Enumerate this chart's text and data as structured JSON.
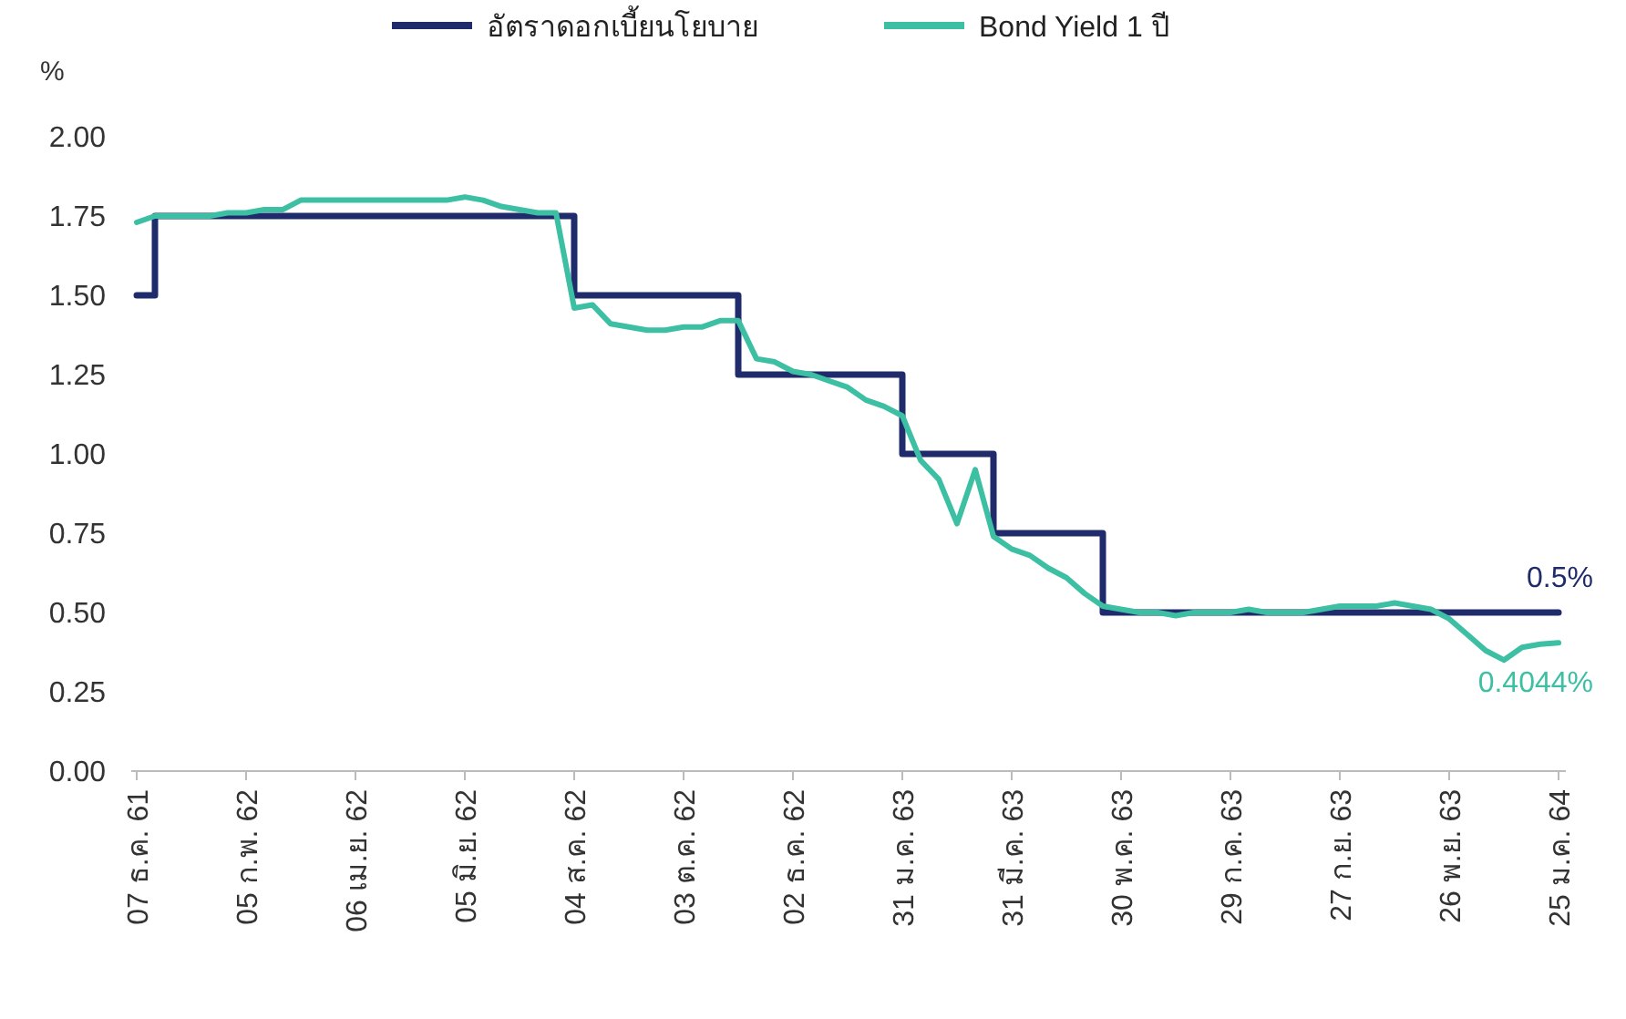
{
  "chart_data": {
    "type": "line",
    "ylabel": "%",
    "categories": [
      "07 ธ.ค. 61",
      null,
      null,
      null,
      null,
      null,
      "05 ก.พ. 62",
      null,
      null,
      null,
      null,
      null,
      "06 เม.ย. 62",
      null,
      null,
      null,
      null,
      null,
      "05 มิ.ย. 62",
      null,
      null,
      null,
      null,
      null,
      "04 ส.ค. 62",
      null,
      null,
      null,
      null,
      null,
      "03 ต.ค. 62",
      null,
      null,
      null,
      null,
      null,
      "02 ธ.ค. 62",
      null,
      null,
      null,
      null,
      null,
      "31 ม.ค. 63",
      null,
      null,
      null,
      null,
      null,
      "31 มี.ค. 63",
      null,
      null,
      null,
      null,
      null,
      "30 พ.ค. 63",
      null,
      null,
      null,
      null,
      null,
      "29 ก.ค. 63",
      null,
      null,
      null,
      null,
      null,
      "27 ก.ย. 63",
      null,
      null,
      null,
      null,
      null,
      "26 พ.ย. 63",
      null,
      null,
      null,
      null,
      null,
      "25 ม.ค. 64"
    ],
    "series": [
      {
        "name": "อัตราดอกเบี้ยนโยบาย",
        "type": "step",
        "color": "#1f2b6b",
        "values": [
          1.5,
          1.75,
          1.75,
          1.75,
          1.75,
          1.75,
          1.75,
          1.75,
          1.75,
          1.75,
          1.75,
          1.75,
          1.75,
          1.75,
          1.75,
          1.75,
          1.75,
          1.75,
          1.75,
          1.75,
          1.75,
          1.75,
          1.75,
          1.75,
          1.5,
          1.5,
          1.5,
          1.5,
          1.5,
          1.5,
          1.5,
          1.5,
          1.5,
          1.25,
          1.25,
          1.25,
          1.25,
          1.25,
          1.25,
          1.25,
          1.25,
          1.25,
          1.0,
          1.0,
          1.0,
          1.0,
          1.0,
          0.75,
          0.75,
          0.75,
          0.75,
          0.75,
          0.75,
          0.5,
          0.5,
          0.5,
          0.5,
          0.5,
          0.5,
          0.5,
          0.5,
          0.5,
          0.5,
          0.5,
          0.5,
          0.5,
          0.5,
          0.5,
          0.5,
          0.5,
          0.5,
          0.5,
          0.5,
          0.5,
          0.5,
          0.5,
          0.5,
          0.5,
          0.5
        ]
      },
      {
        "name": "Bond Yield 1 ปี",
        "color": "#3dbfa3",
        "values": [
          1.73,
          1.75,
          1.75,
          1.75,
          1.75,
          1.76,
          1.76,
          1.77,
          1.77,
          1.8,
          1.8,
          1.8,
          1.8,
          1.8,
          1.8,
          1.8,
          1.8,
          1.8,
          1.81,
          1.8,
          1.78,
          1.77,
          1.76,
          1.76,
          1.46,
          1.47,
          1.41,
          1.4,
          1.39,
          1.39,
          1.4,
          1.4,
          1.42,
          1.42,
          1.3,
          1.29,
          1.26,
          1.25,
          1.23,
          1.21,
          1.17,
          1.15,
          1.12,
          0.98,
          0.92,
          0.78,
          0.95,
          0.74,
          0.7,
          0.68,
          0.64,
          0.61,
          0.56,
          0.52,
          0.51,
          0.5,
          0.5,
          0.49,
          0.5,
          0.5,
          0.5,
          0.51,
          0.5,
          0.5,
          0.5,
          0.51,
          0.52,
          0.52,
          0.52,
          0.53,
          0.52,
          0.51,
          0.48,
          0.43,
          0.38,
          0.35,
          0.39,
          0.4,
          0.4044
        ]
      }
    ],
    "ylim": [
      0,
      2
    ],
    "yticks": [
      {
        "value": 0,
        "label": "0.00"
      },
      {
        "value": 0.25,
        "label": "0.25"
      },
      {
        "value": 0.5,
        "label": "0.50"
      },
      {
        "value": 0.75,
        "label": "0.75"
      },
      {
        "value": 1,
        "label": "1.00"
      },
      {
        "value": 1.25,
        "label": "1.25"
      },
      {
        "value": 1.5,
        "label": "1.50"
      },
      {
        "value": 1.75,
        "label": "1.75"
      },
      {
        "value": 2,
        "label": "2.00"
      }
    ],
    "legend": "top",
    "annotations": [
      {
        "text": "0.5%",
        "x": "25 ม.ค. 64",
        "y": 0.5
      },
      {
        "text": "0.4044%",
        "x": "25 ม.ค. 64",
        "y": 0.4044
      }
    ]
  }
}
